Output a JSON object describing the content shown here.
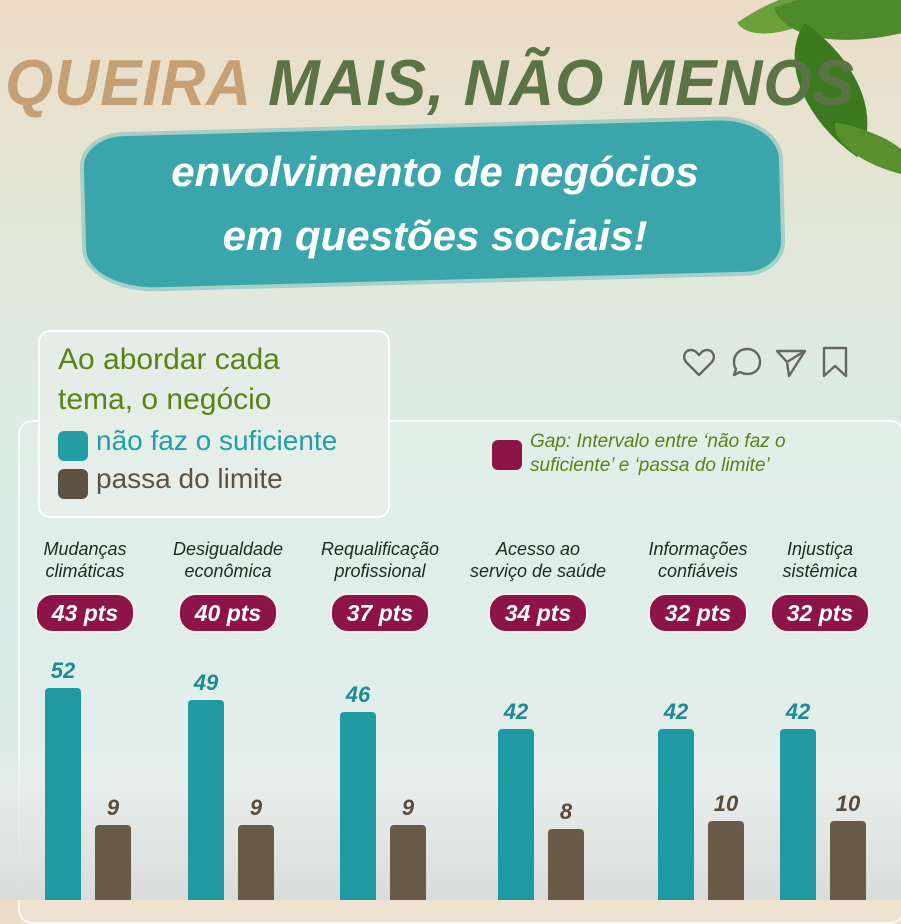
{
  "headline": {
    "part1": "QUEIRA ",
    "part2": "MAIS, NÃO MENOS"
  },
  "subtitle": {
    "line1": "envolvimento de negócios",
    "line2": "em questões sociais!"
  },
  "legend": {
    "intro_line1": "Ao abordar cada",
    "intro_line2": "tema, o negócio",
    "series_a": "não faz o suficiente",
    "series_b": "passa do limite",
    "gap_line1": "Gap: Intervalo entre ‘não faz o",
    "gap_line2": "suficiente’ e ‘passa do limite’"
  },
  "colors": {
    "series_a": "#1f99a2",
    "series_b": "#6a5a48",
    "gap": "#8c1446",
    "accent_green": "#5b8216"
  },
  "icons": [
    "heart-icon",
    "comment-icon",
    "send-icon",
    "bookmark-icon"
  ],
  "chart_data": {
    "type": "bar",
    "categories": [
      [
        "Mudanças",
        "climáticas"
      ],
      [
        "Desigualdade",
        "econômica"
      ],
      [
        "Requalificação",
        "profissional"
      ],
      [
        "Acesso ao",
        "serviço de saúde"
      ],
      [
        "Informações",
        "confiáveis"
      ],
      [
        "Injustiça",
        "sistêmica"
      ]
    ],
    "series": [
      {
        "name": "não faz o suficiente",
        "values": [
          52,
          49,
          46,
          42,
          42,
          42
        ]
      },
      {
        "name": "passa do limite",
        "values": [
          9,
          9,
          9,
          8,
          10,
          10
        ]
      }
    ],
    "gaps": [
      "43 pts",
      "40 pts",
      "37 pts",
      "34 pts",
      "32 pts",
      "32 pts"
    ],
    "ylim": [
      0,
      52
    ]
  }
}
